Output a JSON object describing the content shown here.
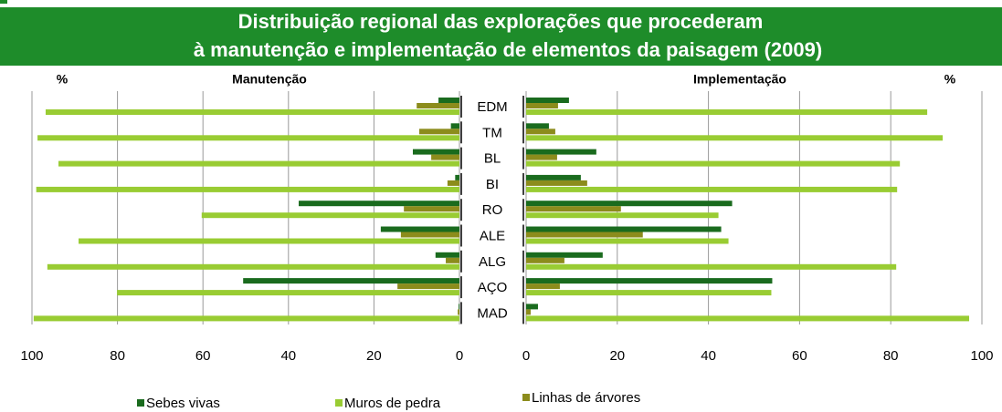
{
  "chart_data": {
    "type": "bar",
    "orientation": "horizontal",
    "title": [
      "Distribuição regional das explorações que procederam",
      "à manutenção e implementação de elementos da paisagem  (2009)"
    ],
    "categories": [
      "EDM",
      "TM",
      "BL",
      "BI",
      "RO",
      "ALE",
      "ALG",
      "AÇO",
      "MAD"
    ],
    "series": [
      {
        "name": "Sebes vivas",
        "color": "#1a6b1e"
      },
      {
        "name": "Muros de pedra",
        "color": "#99cc33"
      },
      {
        "name": "Linhas de árvores",
        "color": "#8c8c1c"
      }
    ],
    "panels": [
      {
        "title": "Manutenção",
        "unit": "%",
        "reversed": true,
        "xlim": [
          0,
          100
        ],
        "xticks": [
          100,
          80,
          60,
          40,
          20,
          0
        ],
        "grid": true,
        "series": [
          {
            "values": [
              4.9,
              2,
              10.9,
              1,
              37.6,
              18.4,
              5.6,
              50.6,
              0.2
            ]
          },
          {
            "values": [
              96.8,
              98.7,
              93.8,
              99,
              60.3,
              89.1,
              96.4,
              80.1,
              99.6
            ]
          },
          {
            "values": [
              10,
              9.4,
              6.6,
              2.8,
              13,
              13.7,
              3.2,
              14.5,
              0.4
            ]
          }
        ]
      },
      {
        "title": "Implementação",
        "unit": "%",
        "reversed": false,
        "xlim": [
          0,
          100
        ],
        "xticks": [
          0,
          20,
          40,
          60,
          80,
          100
        ],
        "grid": true,
        "series": [
          {
            "values": [
              9.4,
              5,
              15.4,
              12,
              45.2,
              42.8,
              16.8,
              54,
              2.6
            ]
          },
          {
            "values": [
              88,
              91.4,
              82,
              81.4,
              42.2,
              44.4,
              81.2,
              53.8,
              97.2
            ]
          },
          {
            "values": [
              7,
              6.4,
              6.8,
              13.4,
              20.8,
              25.6,
              8.4,
              7.4,
              1
            ]
          }
        ]
      }
    ]
  }
}
